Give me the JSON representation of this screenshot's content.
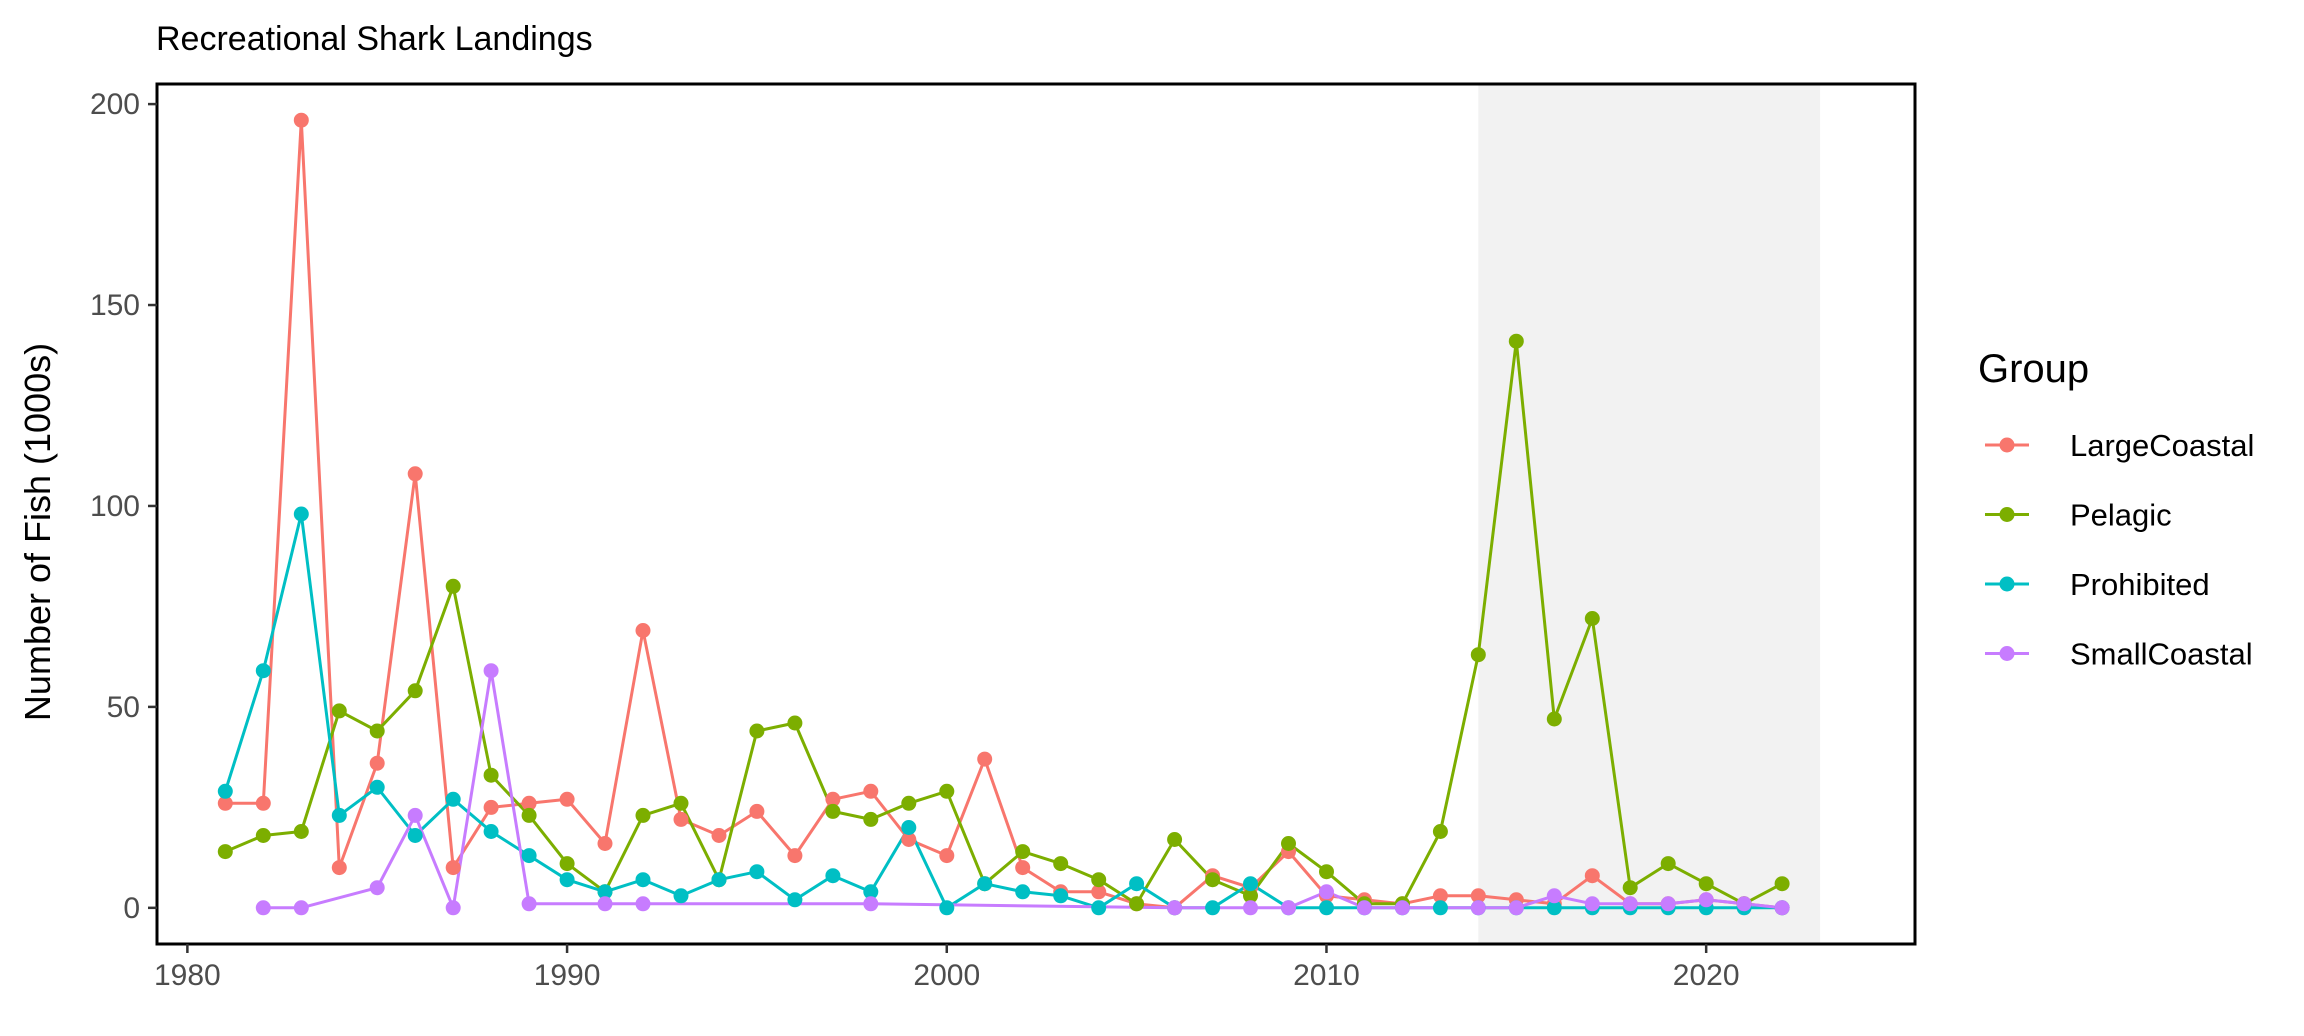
{
  "chart_data": {
    "type": "line",
    "title": "Recreational Shark Landings",
    "xlabel": "",
    "ylabel": "Number of Fish (1000s)",
    "xlim": [
      1979.2,
      2025.5
    ],
    "ylim": [
      -9,
      205
    ],
    "x_ticks": [
      1980,
      1990,
      2000,
      2010,
      2020
    ],
    "y_ticks": [
      0,
      50,
      100,
      150,
      200
    ],
    "grid": false,
    "shaded_region": {
      "x_start": 2014,
      "x_end": 2023,
      "color": "#f2f2f2"
    },
    "legend": {
      "title": "Group",
      "position": "right"
    },
    "series": [
      {
        "name": "LargeCoastal",
        "color": "#F8766D",
        "points": [
          [
            1981,
            26
          ],
          [
            1982,
            26
          ],
          [
            1983,
            196
          ],
          [
            1984,
            10
          ],
          [
            1985,
            36
          ],
          [
            1986,
            108
          ],
          [
            1987,
            10
          ],
          [
            1988,
            25
          ],
          [
            1989,
            26
          ],
          [
            1990,
            27
          ],
          [
            1991,
            16
          ],
          [
            1992,
            69
          ],
          [
            1993,
            22
          ],
          [
            1994,
            18
          ],
          [
            1995,
            24
          ],
          [
            1996,
            13
          ],
          [
            1997,
            27
          ],
          [
            1998,
            29
          ],
          [
            1999,
            17
          ],
          [
            2000,
            13
          ],
          [
            2001,
            37
          ],
          [
            2002,
            10
          ],
          [
            2003,
            4
          ],
          [
            2004,
            4
          ],
          [
            2005,
            1
          ],
          [
            2006,
            0
          ],
          [
            2007,
            8
          ],
          [
            2008,
            5
          ],
          [
            2009,
            14
          ],
          [
            2010,
            3
          ],
          [
            2011,
            2
          ],
          [
            2012,
            1
          ],
          [
            2013,
            3
          ],
          [
            2014,
            3
          ],
          [
            2015,
            2
          ],
          [
            2016,
            1
          ],
          [
            2017,
            8
          ],
          [
            2018,
            1
          ],
          [
            2019,
            1
          ],
          [
            2020,
            2
          ],
          [
            2021,
            1
          ],
          [
            2022,
            0
          ]
        ]
      },
      {
        "name": "Pelagic",
        "color": "#7CAE00",
        "points": [
          [
            1981,
            14
          ],
          [
            1982,
            18
          ],
          [
            1983,
            19
          ],
          [
            1984,
            49
          ],
          [
            1985,
            44
          ],
          [
            1986,
            54
          ],
          [
            1987,
            80
          ],
          [
            1988,
            33
          ],
          [
            1989,
            23
          ],
          [
            1990,
            11
          ],
          [
            1991,
            4
          ],
          [
            1992,
            23
          ],
          [
            1993,
            26
          ],
          [
            1994,
            7
          ],
          [
            1995,
            44
          ],
          [
            1996,
            46
          ],
          [
            1997,
            24
          ],
          [
            1998,
            22
          ],
          [
            1999,
            26
          ],
          [
            2000,
            29
          ],
          [
            2001,
            6
          ],
          [
            2002,
            14
          ],
          [
            2003,
            11
          ],
          [
            2004,
            7
          ],
          [
            2005,
            1
          ],
          [
            2006,
            17
          ],
          [
            2007,
            7
          ],
          [
            2008,
            3
          ],
          [
            2009,
            16
          ],
          [
            2010,
            9
          ],
          [
            2011,
            1
          ],
          [
            2012,
            1
          ],
          [
            2013,
            19
          ],
          [
            2014,
            63
          ],
          [
            2015,
            141
          ],
          [
            2016,
            47
          ],
          [
            2017,
            72
          ],
          [
            2018,
            5
          ],
          [
            2019,
            11
          ],
          [
            2020,
            6
          ],
          [
            2021,
            1
          ],
          [
            2022,
            6
          ]
        ]
      },
      {
        "name": "Prohibited",
        "color": "#00BFC4",
        "points": [
          [
            1981,
            29
          ],
          [
            1982,
            59
          ],
          [
            1983,
            98
          ],
          [
            1984,
            23
          ],
          [
            1985,
            30
          ],
          [
            1986,
            18
          ],
          [
            1987,
            27
          ],
          [
            1988,
            19
          ],
          [
            1989,
            13
          ],
          [
            1990,
            7
          ],
          [
            1991,
            4
          ],
          [
            1992,
            7
          ],
          [
            1993,
            3
          ],
          [
            1994,
            7
          ],
          [
            1995,
            9
          ],
          [
            1996,
            2
          ],
          [
            1997,
            8
          ],
          [
            1998,
            4
          ],
          [
            1999,
            20
          ],
          [
            2000,
            0
          ],
          [
            2001,
            6
          ],
          [
            2002,
            4
          ],
          [
            2003,
            3
          ],
          [
            2004,
            0
          ],
          [
            2005,
            6
          ],
          [
            2006,
            0
          ],
          [
            2007,
            0
          ],
          [
            2008,
            6
          ],
          [
            2009,
            0
          ],
          [
            2010,
            0
          ],
          [
            2011,
            0
          ],
          [
            2012,
            0
          ],
          [
            2013,
            0
          ],
          [
            2014,
            0
          ],
          [
            2015,
            0
          ],
          [
            2016,
            0
          ],
          [
            2017,
            0
          ],
          [
            2018,
            0
          ],
          [
            2019,
            0
          ],
          [
            2020,
            0
          ],
          [
            2021,
            0
          ],
          [
            2022,
            0
          ]
        ]
      },
      {
        "name": "SmallCoastal",
        "color": "#C77CFF",
        "points": [
          [
            1982,
            0
          ],
          [
            1983,
            0
          ],
          [
            1985,
            5
          ],
          [
            1986,
            23
          ],
          [
            1987,
            0
          ],
          [
            1988,
            59
          ],
          [
            1989,
            1
          ],
          [
            1991,
            1
          ],
          [
            1992,
            1
          ],
          [
            1998,
            1
          ],
          [
            2006,
            0
          ],
          [
            2008,
            0
          ],
          [
            2009,
            0
          ],
          [
            2010,
            4
          ],
          [
            2011,
            0
          ],
          [
            2012,
            0
          ],
          [
            2014,
            0
          ],
          [
            2015,
            0
          ],
          [
            2016,
            3
          ],
          [
            2017,
            1
          ],
          [
            2018,
            1
          ],
          [
            2019,
            1
          ],
          [
            2020,
            2
          ],
          [
            2021,
            1
          ],
          [
            2022,
            0
          ]
        ]
      }
    ]
  }
}
